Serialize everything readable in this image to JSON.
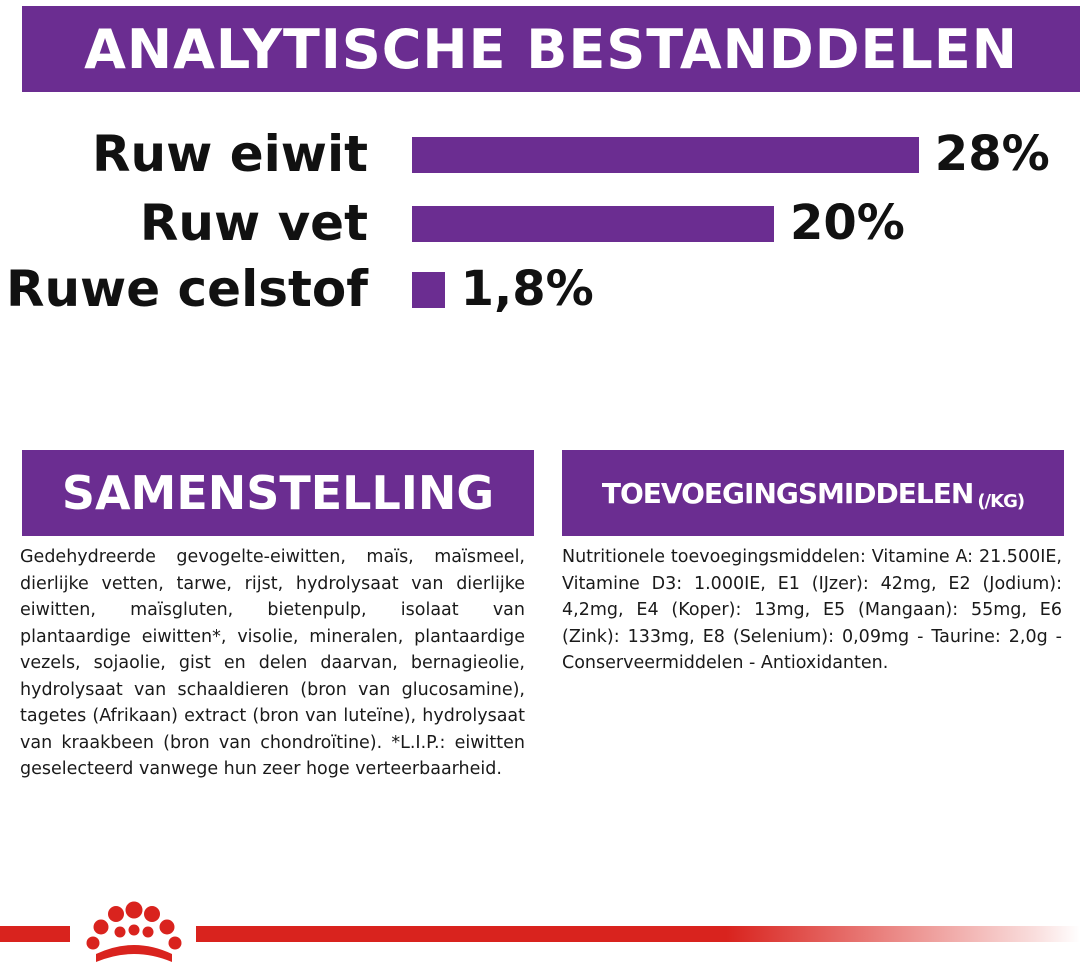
{
  "analysis": {
    "title": "ANALYTISCHE BESTANDDELEN",
    "nutrients": [
      {
        "label": "Ruw eiwit",
        "percent_text": "28%",
        "value": 28
      },
      {
        "label": "Ruw vet",
        "percent_text": "20%",
        "value": 20
      },
      {
        "label": "Ruwe celstof",
        "percent_text": "1,8%",
        "value": 1.8
      }
    ],
    "bar_color": "#6b2d91"
  },
  "composition": {
    "title": "SAMENSTELLING",
    "text": "Gedehydreerde gevogelte-eiwitten, maïs, maïsmeel, dierlijke vetten, tarwe, rijst, hydrolysaat van dierlijke eiwitten, maïsgluten, bietenpulp, isolaat van plantaardige eiwitten*, visolie, mineralen, plantaardige vezels, sojaolie, gist en delen daarvan, bernagieolie, hydrolysaat van schaaldieren (bron van glucosamine), tagetes (Afrikaan) extract (bron van luteïne), hydrolysaat van kraakbeen (bron van chondroïtine). *L.I.P.: eiwitten geselecteerd vanwege hun zeer hoge verteerbaarheid."
  },
  "additives": {
    "title": "TOEVOEGINGSMIDDELEN",
    "unit": "(/kg)",
    "text": "Nutritionele toevoegingsmiddelen: Vitamine A: 21.500IE, Vitamine D3: 1.000IE, E1 (IJzer): 42mg, E2 (Jodium): 4,2mg, E4 (Koper): 13mg, E5 (Mangaan): 55mg, E6 (Zink): 133mg, E8 (Selenium): 0,09mg - Taurine: 2,0g - Conserveermiddelen - Antioxidanten."
  },
  "footer": {
    "logo": "royal-canin-crown-icon",
    "accent_color": "#d9231e"
  }
}
